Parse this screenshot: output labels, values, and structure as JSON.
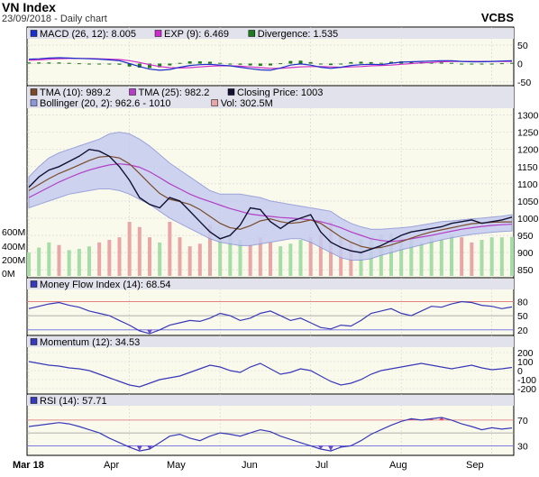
{
  "header": {
    "title": "VN Index",
    "subtitle": "23/09/2018 - Daily chart",
    "brand": "VCBS"
  },
  "colors": {
    "background": "#ffffff",
    "panel": "#f9f9ec",
    "legend": "#e2e2ec",
    "grid": "#d4d4d4",
    "price": "#111133",
    "tma10": "#7a4b2a",
    "tma25": "#b23fc4",
    "band_fill": "#c6ccf0",
    "band_line": "#8c96d8",
    "macd": "#1c2fc8",
    "signal": "#cc2ccc",
    "divergence": "#1f7a1f",
    "vol_up": "#a6dca6",
    "vol_down": "#e8a6a6",
    "indicator": "#3838b8",
    "ref_red": "#e07070",
    "ref_blue": "#6a6ae0",
    "extreme_fill": "#6a4ad0",
    "overbought_fill": "#e04060"
  },
  "chart_data": [
    {
      "type": "bar",
      "name": "MACD",
      "legend": [
        {
          "label": "MACD (26, 12): 8.005",
          "color": "#1c2fc8"
        },
        {
          "label": "EXP (9): 6.469",
          "color": "#cc2ccc"
        },
        {
          "label": "Divergence: 1.535",
          "color": "#1f7a1f"
        }
      ],
      "y_ticks": [
        "50",
        "0",
        "-50"
      ],
      "ylim": [
        -55,
        60
      ],
      "macd": [
        12,
        13,
        15,
        16,
        15,
        14,
        13,
        12,
        10,
        8,
        0,
        -8,
        -15,
        -18,
        -16,
        -10,
        -5,
        -3,
        -2,
        -4,
        -6,
        -10,
        -14,
        -17,
        -18,
        -12,
        -4,
        -1,
        -4,
        -10,
        -13,
        -10,
        -5,
        -3,
        -2,
        -3,
        1,
        4,
        5,
        6,
        7,
        8,
        8,
        6,
        5,
        5,
        6,
        7,
        8
      ],
      "signal": [
        9,
        10,
        12,
        13,
        14,
        14,
        14,
        13,
        12,
        11,
        8,
        3,
        -3,
        -8,
        -11,
        -12,
        -11,
        -9,
        -7,
        -6,
        -6,
        -7,
        -9,
        -11,
        -13,
        -13,
        -11,
        -9,
        -8,
        -8,
        -9,
        -10,
        -9,
        -8,
        -6,
        -5,
        -4,
        -2,
        0,
        2,
        3,
        5,
        6,
        6,
        6,
        6,
        6,
        6,
        6
      ],
      "divergence": [
        3,
        3,
        3,
        3,
        2,
        1,
        -1,
        -2,
        -2,
        -3,
        -8,
        -11,
        -12,
        -10,
        -5,
        2,
        6,
        6,
        5,
        2,
        0,
        -3,
        -5,
        -6,
        -5,
        1,
        7,
        8,
        4,
        -2,
        -4,
        0,
        4,
        5,
        4,
        2,
        5,
        6,
        5,
        4,
        4,
        3,
        2,
        0,
        -1,
        -1,
        0,
        1,
        2
      ]
    },
    {
      "type": "line",
      "name": "Price",
      "legend": [
        {
          "label": "TMA (10): 989.2",
          "color": "#7a4b2a"
        },
        {
          "label": "TMA (25): 982.2",
          "color": "#b23fc4"
        },
        {
          "label": "Closing Price: 1003",
          "color": "#111133"
        },
        {
          "label": "Bollinger (20, 2): 962.6 - 1010",
          "color": "#8c96d8"
        },
        {
          "label": "Vol: 302.5M",
          "color": "#e8a6a6"
        }
      ],
      "y_ticks": [
        "1300",
        "1250",
        "1200",
        "1150",
        "1100",
        "1050",
        "1000",
        "950",
        "900",
        "850"
      ],
      "ylim": [
        832,
        1312
      ],
      "volume_ticks": [
        "600M",
        "400M",
        "200M",
        "0M"
      ],
      "volume_lim": [
        0,
        1300
      ],
      "close": [
        1090,
        1120,
        1140,
        1150,
        1165,
        1180,
        1200,
        1195,
        1180,
        1150,
        1110,
        1060,
        1040,
        1030,
        1060,
        1050,
        1020,
        990,
        960,
        940,
        950,
        980,
        1030,
        1025,
        990,
        970,
        990,
        1000,
        1010,
        960,
        930,
        915,
        905,
        900,
        910,
        920,
        935,
        950,
        960,
        965,
        970,
        975,
        985,
        990,
        995,
        985,
        990,
        995,
        1003
      ],
      "tma10": [
        1080,
        1098,
        1115,
        1130,
        1142,
        1155,
        1168,
        1178,
        1180,
        1175,
        1158,
        1130,
        1100,
        1072,
        1055,
        1048,
        1040,
        1025,
        1005,
        985,
        972,
        968,
        978,
        992,
        998,
        990,
        985,
        988,
        995,
        985,
        965,
        945,
        930,
        918,
        912,
        915,
        922,
        932,
        942,
        952,
        960,
        966,
        972,
        978,
        984,
        986,
        988,
        989,
        989.2
      ],
      "tma25": [
        1060,
        1075,
        1090,
        1105,
        1118,
        1130,
        1140,
        1148,
        1155,
        1158,
        1155,
        1148,
        1135,
        1118,
        1100,
        1085,
        1070,
        1058,
        1048,
        1038,
        1028,
        1020,
        1012,
        1008,
        1005,
        1002,
        1000,
        998,
        995,
        990,
        982,
        972,
        960,
        950,
        940,
        935,
        932,
        935,
        940,
        945,
        950,
        956,
        962,
        968,
        972,
        976,
        979,
        981,
        982.2
      ],
      "boll_upper": [
        1120,
        1150,
        1175,
        1190,
        1200,
        1210,
        1220,
        1230,
        1245,
        1250,
        1245,
        1230,
        1210,
        1185,
        1160,
        1140,
        1120,
        1100,
        1080,
        1070,
        1070,
        1070,
        1065,
        1060,
        1050,
        1045,
        1040,
        1035,
        1030,
        1025,
        1020,
        1000,
        985,
        975,
        968,
        968,
        970,
        972,
        975,
        980,
        985,
        990,
        992,
        995,
        998,
        1000,
        1003,
        1006,
        1010
      ],
      "boll_lower": [
        1030,
        1040,
        1050,
        1060,
        1070,
        1075,
        1080,
        1085,
        1085,
        1080,
        1070,
        1055,
        1040,
        1020,
        1000,
        985,
        970,
        955,
        940,
        930,
        925,
        920,
        920,
        925,
        930,
        935,
        940,
        940,
        930,
        915,
        900,
        885,
        878,
        878,
        882,
        892,
        900,
        908,
        915,
        922,
        930,
        937,
        943,
        948,
        953,
        956,
        959,
        961,
        962.6
      ],
      "volume": [
        180,
        220,
        260,
        240,
        200,
        210,
        230,
        260,
        280,
        300,
        420,
        380,
        300,
        260,
        420,
        300,
        230,
        250,
        400,
        330,
        320,
        280,
        240,
        300,
        260,
        230,
        250,
        280,
        300,
        320,
        420,
        300,
        260,
        280,
        300,
        320,
        330,
        300,
        280,
        260,
        300,
        280,
        320,
        300,
        260,
        280,
        300,
        300,
        302.5
      ],
      "volume_up": [
        true,
        true,
        true,
        false,
        true,
        true,
        true,
        false,
        false,
        false,
        false,
        false,
        false,
        true,
        false,
        false,
        false,
        false,
        false,
        true,
        true,
        true,
        false,
        false,
        false,
        true,
        true,
        true,
        false,
        false,
        false,
        false,
        false,
        true,
        true,
        true,
        true,
        true,
        true,
        true,
        true,
        true,
        true,
        false,
        false,
        true,
        true,
        true,
        true
      ]
    },
    {
      "type": "line",
      "name": "Money Flow Index",
      "legend": [
        {
          "label": "Money Flow Index (14): 68.54",
          "color": "#3838b8"
        }
      ],
      "y_ticks": [
        "80",
        "50",
        "20"
      ],
      "ylim": [
        12,
        100
      ],
      "reference_lines": [
        80,
        50,
        20
      ],
      "values": [
        65,
        70,
        75,
        78,
        72,
        68,
        60,
        55,
        50,
        40,
        30,
        18,
        12,
        20,
        30,
        35,
        40,
        38,
        45,
        55,
        50,
        40,
        45,
        55,
        60,
        50,
        40,
        45,
        35,
        25,
        22,
        30,
        28,
        40,
        55,
        60,
        65,
        55,
        50,
        60,
        70,
        68,
        75,
        80,
        78,
        72,
        70,
        65,
        68.54
      ]
    },
    {
      "type": "line",
      "name": "Momentum",
      "legend": [
        {
          "label": "Momentum (12): 34.53",
          "color": "#3838b8"
        }
      ],
      "y_ticks": [
        "200",
        "100",
        "0",
        "-100",
        "-200"
      ],
      "ylim": [
        -240,
        230
      ],
      "values": [
        100,
        80,
        60,
        50,
        30,
        20,
        0,
        -40,
        -80,
        -120,
        -160,
        -180,
        -140,
        -100,
        -80,
        -60,
        -20,
        20,
        60,
        40,
        0,
        -20,
        40,
        80,
        20,
        -40,
        -20,
        20,
        0,
        -60,
        -120,
        -160,
        -140,
        -100,
        -40,
        0,
        20,
        40,
        60,
        80,
        60,
        40,
        20,
        40,
        60,
        30,
        10,
        20,
        34.53
      ]
    },
    {
      "type": "line",
      "name": "RSI",
      "legend": [
        {
          "label": "RSI (14): 57.71",
          "color": "#3838b8"
        }
      ],
      "y_ticks": [
        "70",
        "30"
      ],
      "ylim": [
        18,
        88
      ],
      "reference_lines": [
        70,
        50,
        30
      ],
      "values": [
        60,
        62,
        64,
        66,
        64,
        60,
        55,
        50,
        42,
        35,
        28,
        22,
        25,
        35,
        45,
        48,
        42,
        38,
        45,
        50,
        48,
        45,
        50,
        55,
        52,
        45,
        40,
        35,
        30,
        25,
        22,
        28,
        30,
        38,
        48,
        55,
        62,
        68,
        72,
        70,
        72,
        74,
        70,
        64,
        60,
        55,
        58,
        56,
        57.71
      ]
    }
  ],
  "x_axis": {
    "labels": [
      "Mar 18",
      "Apr",
      "May",
      "Jun",
      "Jul",
      "Aug",
      "Sep"
    ]
  }
}
